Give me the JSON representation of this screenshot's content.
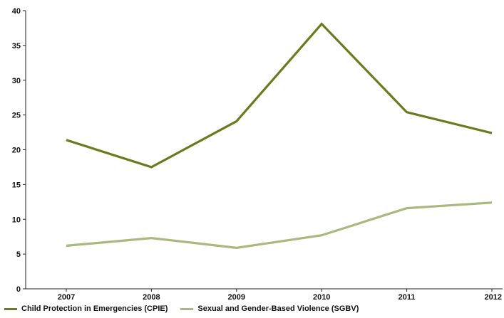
{
  "chart_data": {
    "type": "line",
    "categories": [
      "2007",
      "2008",
      "2009",
      "2010",
      "2011",
      "2012"
    ],
    "series": [
      {
        "name": "Child Protection in Emergencies (CPIE)",
        "values": [
          21.4,
          17.5,
          24.1,
          38.1,
          25.4,
          22.4
        ],
        "color": "#6b7a1f"
      },
      {
        "name": "Sexual and Gender-Based Violence (SGBV)",
        "values": [
          6.2,
          7.3,
          5.9,
          7.7,
          11.6,
          12.4
        ],
        "color": "#a9b87e"
      }
    ],
    "ylim": [
      0,
      40
    ],
    "yticks": [
      "0",
      "5",
      "10",
      "15",
      "20",
      "25",
      "30",
      "35",
      "40"
    ],
    "grid": false,
    "legend_position": "bottom-left"
  }
}
